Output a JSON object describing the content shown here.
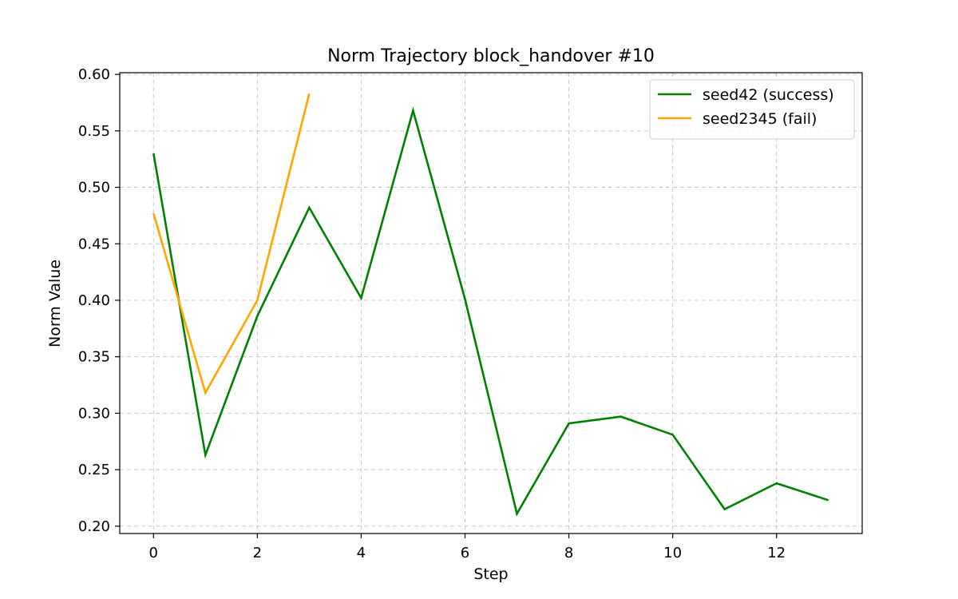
{
  "chart_data": {
    "type": "line",
    "title": "Norm Trajectory block_handover #10",
    "xlabel": "Step",
    "ylabel": "Norm Value",
    "xlim": [
      -0.65,
      13.65
    ],
    "ylim": [
      0.1935,
      0.6015
    ],
    "xticks": [
      0,
      2,
      4,
      6,
      8,
      10,
      12
    ],
    "yticks": [
      0.2,
      0.25,
      0.3,
      0.35,
      0.4,
      0.45,
      0.5,
      0.55,
      0.6
    ],
    "ytick_labels": [
      "0.20",
      "0.25",
      "0.30",
      "0.35",
      "0.40",
      "0.45",
      "0.50",
      "0.55",
      "0.60"
    ],
    "grid": true,
    "legend_position": "top-right",
    "series": [
      {
        "name": "seed42 (success)",
        "color": "#008000",
        "x": [
          0,
          1,
          2,
          3,
          4,
          5,
          6,
          7,
          8,
          9,
          10,
          11,
          12,
          13
        ],
        "values": [
          0.53,
          0.263,
          0.386,
          0.482,
          0.402,
          0.568,
          0.401,
          0.211,
          0.291,
          0.297,
          0.281,
          0.215,
          0.238,
          0.223
        ]
      },
      {
        "name": "seed2345 (fail)",
        "color": "#ffa500",
        "x": [
          0,
          1,
          2,
          3
        ],
        "values": [
          0.477,
          0.318,
          0.4,
          0.583
        ]
      }
    ]
  }
}
